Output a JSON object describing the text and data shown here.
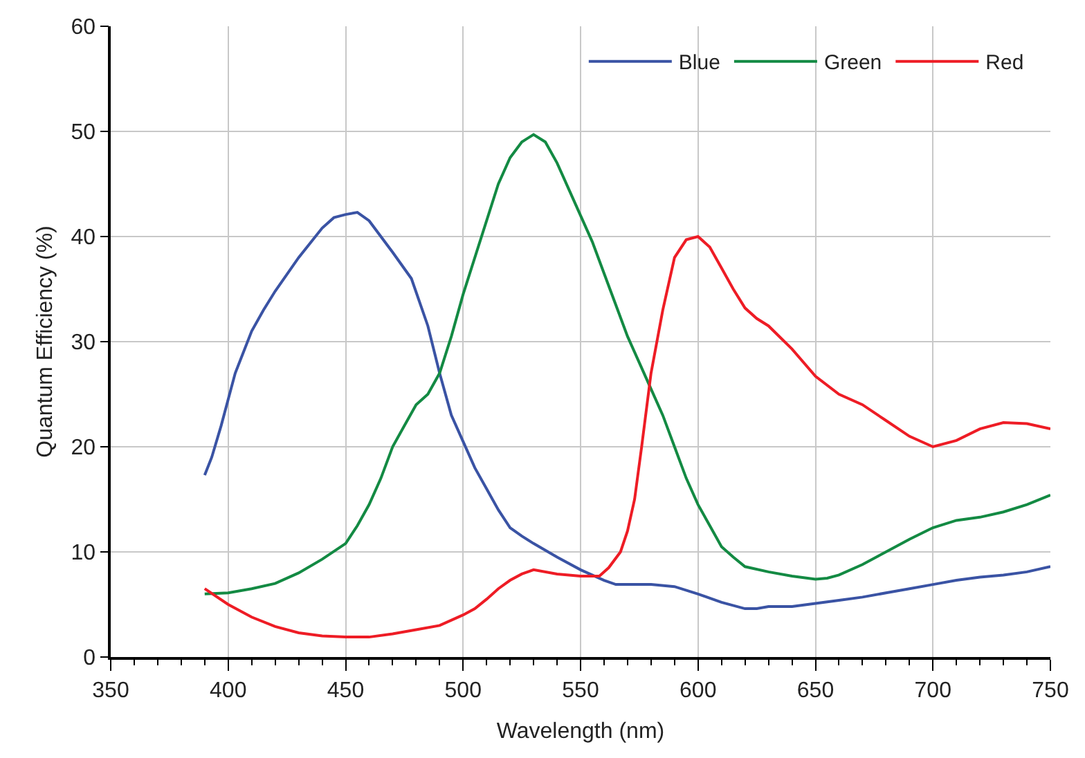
{
  "chart_data": {
    "type": "line",
    "xlabel": "Wavelength (nm)",
    "ylabel": "Quantum Efficiency (%)",
    "xlim": [
      350,
      750
    ],
    "xticks": [
      350,
      400,
      450,
      500,
      550,
      600,
      650,
      700,
      750
    ],
    "ylim": [
      0,
      60
    ],
    "yticks": [
      0,
      10,
      20,
      30,
      40,
      50,
      60
    ],
    "grid": true,
    "legend": "top right",
    "marker": "none",
    "line_style": "solid",
    "series": [
      {
        "name": "Blue",
        "color": "#3a53a4",
        "x": [
          390,
          393,
          397,
          400,
          403,
          410,
          415,
          420,
          430,
          440,
          445,
          450,
          455,
          460,
          470,
          478,
          485,
          490,
          495,
          500,
          505,
          510,
          515,
          520,
          525,
          530,
          540,
          550,
          560,
          565,
          570,
          580,
          590,
          600,
          610,
          620,
          625,
          630,
          640,
          650,
          660,
          670,
          680,
          690,
          700,
          710,
          720,
          730,
          740,
          750
        ],
        "values": [
          17.3,
          19,
          22,
          24.5,
          27,
          31,
          33,
          34.8,
          38,
          40.8,
          41.8,
          42.1,
          42.3,
          41.5,
          38.5,
          36,
          31.5,
          27,
          23,
          20.5,
          18,
          16,
          14,
          12.3,
          11.5,
          10.8,
          9.5,
          8.3,
          7.3,
          6.9,
          6.9,
          6.9,
          6.7,
          6,
          5.2,
          4.6,
          4.6,
          4.8,
          4.8,
          5.1,
          5.4,
          5.7,
          6.1,
          6.5,
          6.9,
          7.3,
          7.6,
          7.8,
          8.1,
          8.6
        ]
      },
      {
        "name": "Green",
        "color": "#138a43",
        "x": [
          390,
          400,
          410,
          420,
          430,
          440,
          450,
          455,
          460,
          465,
          470,
          475,
          480,
          485,
          490,
          495,
          500,
          505,
          510,
          515,
          520,
          525,
          530,
          535,
          540,
          545,
          550,
          555,
          560,
          565,
          570,
          575,
          580,
          585,
          590,
          595,
          600,
          605,
          610,
          615,
          620,
          630,
          640,
          650,
          655,
          660,
          670,
          680,
          690,
          700,
          710,
          720,
          730,
          740,
          750
        ],
        "values": [
          6,
          6.1,
          6.5,
          7,
          8,
          9.3,
          10.8,
          12.5,
          14.5,
          17,
          20,
          22,
          24,
          25,
          27,
          30.5,
          34.5,
          38,
          41.5,
          45,
          47.5,
          49,
          49.7,
          49,
          47,
          44.5,
          42,
          39.5,
          36.5,
          33.5,
          30.5,
          28,
          25.5,
          23,
          20,
          17,
          14.5,
          12.5,
          10.5,
          9.5,
          8.6,
          8.1,
          7.7,
          7.4,
          7.5,
          7.8,
          8.8,
          10,
          11.2,
          12.3,
          13,
          13.3,
          13.8,
          14.5,
          15.4
        ]
      },
      {
        "name": "Red",
        "color": "#ee1c25",
        "x": [
          390,
          400,
          410,
          420,
          430,
          440,
          450,
          460,
          470,
          480,
          490,
          500,
          505,
          510,
          515,
          520,
          525,
          530,
          540,
          550,
          558,
          562,
          567,
          570,
          573,
          576,
          580,
          585,
          590,
          595,
          600,
          605,
          610,
          615,
          620,
          625,
          630,
          640,
          650,
          660,
          670,
          680,
          690,
          700,
          710,
          720,
          730,
          740,
          750
        ],
        "values": [
          6.5,
          5,
          3.8,
          2.9,
          2.3,
          2,
          1.9,
          1.9,
          2.2,
          2.6,
          3,
          4,
          4.6,
          5.5,
          6.5,
          7.3,
          7.9,
          8.3,
          7.9,
          7.7,
          7.7,
          8.5,
          10,
          12,
          15,
          20,
          27,
          33,
          38,
          39.7,
          40,
          39,
          37,
          35,
          33.2,
          32.2,
          31.5,
          29.3,
          26.7,
          25,
          24,
          22.5,
          21,
          20,
          20.6,
          21.7,
          22.3,
          22.2,
          21.7
        ]
      }
    ]
  }
}
